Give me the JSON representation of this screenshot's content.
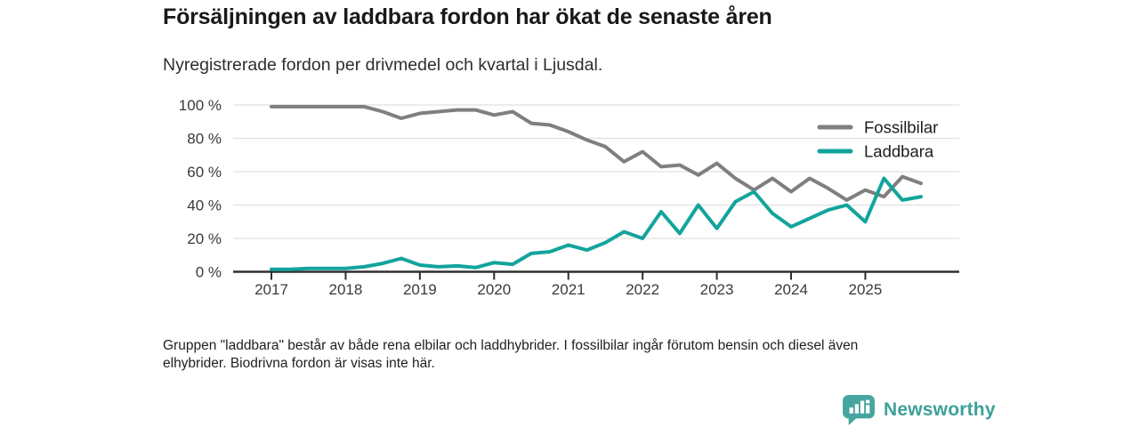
{
  "header": {
    "title": "Försäljningen av laddbara fordon har ökat de senaste åren",
    "subtitle": "Nyregistrerade fordon per drivmedel och kvartal i Ljusdal."
  },
  "chart_data": {
    "type": "line",
    "x_unit": "quarter",
    "x_start": "2017 Q1",
    "x_end": "2025 Q4",
    "ylim": [
      0,
      100
    ],
    "grid": true,
    "legend_position": "top-right",
    "y_ticks": [
      {
        "value": 0,
        "label": "0 %"
      },
      {
        "value": 20,
        "label": "20 %"
      },
      {
        "value": 40,
        "label": "40 %"
      },
      {
        "value": 60,
        "label": "60 %"
      },
      {
        "value": 80,
        "label": "80 %"
      },
      {
        "value": 100,
        "label": "100 %"
      }
    ],
    "x_ticks": [
      {
        "index": 0,
        "label": "2017"
      },
      {
        "index": 4,
        "label": "2018"
      },
      {
        "index": 8,
        "label": "2019"
      },
      {
        "index": 12,
        "label": "2020"
      },
      {
        "index": 16,
        "label": "2021"
      },
      {
        "index": 20,
        "label": "2022"
      },
      {
        "index": 24,
        "label": "2023"
      },
      {
        "index": 28,
        "label": "2024"
      },
      {
        "index": 32,
        "label": "2025"
      }
    ],
    "series": [
      {
        "name": "Fossilbilar",
        "color": "#7f7f7f",
        "values": [
          99,
          99,
          99,
          99,
          99,
          99,
          96,
          92,
          95,
          96,
          97,
          97,
          94,
          96,
          89,
          88,
          84,
          79,
          75,
          66,
          72,
          63,
          64,
          58,
          65,
          56,
          49,
          56,
          48,
          56,
          50,
          43,
          49,
          45,
          57,
          53
        ]
      },
      {
        "name": "Laddbara",
        "color": "#12a49c",
        "values": [
          1.5,
          1.5,
          2,
          2,
          2,
          3,
          5,
          8,
          4,
          3,
          3.5,
          2.5,
          5.5,
          4.5,
          11,
          12,
          16,
          13,
          17.5,
          24,
          20,
          36,
          23,
          40,
          26,
          42,
          48,
          35,
          27,
          32,
          37,
          40,
          30,
          56,
          43,
          45
        ]
      }
    ]
  },
  "footnote": {
    "lines": [
      "Gruppen \"laddbara\" består av både rena elbilar och laddhybrider. I fossilbilar ingår förutom bensin och diesel även",
      "elhybrider. Biodrivna fordon är visas inte här."
    ]
  },
  "logo": {
    "text": "Newsworthy",
    "icon": "bar-chart-speech-bubble-icon"
  },
  "colors": {
    "accent_teal": "#12a49c",
    "series_gray": "#7f7f7f",
    "gridline": "#e0e0e0",
    "axis": "#2f2f2f",
    "logo_teal": "#47a5a0"
  }
}
